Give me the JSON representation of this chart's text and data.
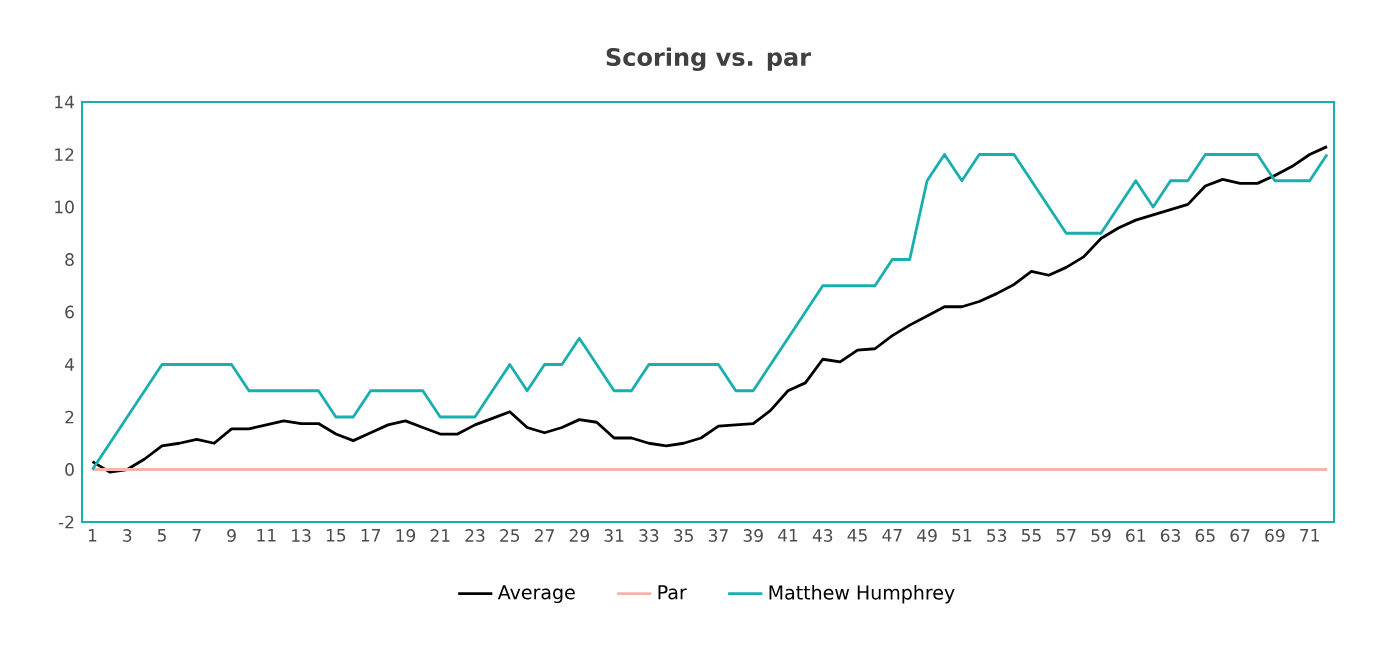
{
  "chart_data": {
    "type": "line",
    "title": "Scoring vs. par",
    "categories": [
      "1",
      null,
      "3",
      null,
      "5",
      null,
      "7",
      null,
      "9",
      null,
      "11",
      null,
      "13",
      null,
      "15",
      null,
      "17",
      null,
      "19",
      null,
      "21",
      null,
      "23",
      null,
      "25",
      null,
      "27",
      null,
      "29",
      null,
      "31",
      null,
      "33",
      null,
      "35",
      null,
      "37",
      null,
      "39",
      null,
      "41",
      null,
      "43",
      null,
      "45",
      null,
      "47",
      null,
      "49",
      null,
      "51",
      null,
      "53",
      null,
      "55",
      null,
      "57",
      null,
      "59",
      null,
      "61",
      null,
      "63",
      null,
      "65",
      null,
      "67",
      null,
      "69",
      null,
      "71",
      null
    ],
    "series": [
      {
        "name": "Average",
        "color": "#000000",
        "values": [
          0.3,
          -0.1,
          0,
          0.4,
          0.9,
          1.0,
          1.15,
          1.0,
          1.55,
          1.55,
          1.7,
          1.85,
          1.75,
          1.75,
          1.35,
          1.1,
          1.4,
          1.7,
          1.85,
          1.6,
          1.35,
          1.35,
          1.7,
          1.95,
          2.2,
          1.6,
          1.4,
          1.6,
          1.9,
          1.8,
          1.2,
          1.2,
          1.0,
          0.9,
          1.0,
          1.2,
          1.65,
          1.7,
          1.75,
          2.25,
          3.0,
          3.3,
          4.2,
          4.1,
          4.55,
          4.6,
          5.1,
          5.5,
          5.85,
          6.2,
          6.2,
          6.4,
          6.7,
          7.05,
          7.55,
          7.4,
          7.7,
          8.1,
          8.8,
          9.2,
          9.5,
          9.7,
          9.9,
          10.1,
          10.8,
          11.05,
          10.9,
          10.9,
          11.2,
          11.55,
          12.0,
          12.3
        ]
      },
      {
        "name": "Par",
        "color": "#f4b5a8",
        "values": [
          0,
          0,
          0,
          0,
          0,
          0,
          0,
          0,
          0,
          0,
          0,
          0,
          0,
          0,
          0,
          0,
          0,
          0,
          0,
          0,
          0,
          0,
          0,
          0,
          0,
          0,
          0,
          0,
          0,
          0,
          0,
          0,
          0,
          0,
          0,
          0,
          0,
          0,
          0,
          0,
          0,
          0,
          0,
          0,
          0,
          0,
          0,
          0,
          0,
          0,
          0,
          0,
          0,
          0,
          0,
          0,
          0,
          0,
          0,
          0,
          0,
          0,
          0,
          0,
          0,
          0,
          0,
          0,
          0,
          0,
          0,
          0
        ]
      },
      {
        "name": "Matthew Humphrey",
        "color": "#1aaeae",
        "values": [
          0,
          1,
          2,
          3,
          4,
          4,
          4,
          4,
          4,
          3,
          3,
          3,
          3,
          3,
          2,
          2,
          3,
          3,
          3,
          3,
          2,
          2,
          2,
          3,
          4,
          3,
          4,
          4,
          5,
          4,
          3,
          3,
          4,
          4,
          4,
          4,
          4,
          3,
          3,
          4,
          5,
          6,
          7,
          7,
          7,
          7,
          8,
          8,
          11,
          12,
          11,
          12,
          12,
          12,
          11,
          10,
          9,
          9,
          9,
          10,
          11,
          10,
          11,
          11,
          12,
          12,
          12,
          12,
          11,
          11,
          11,
          12
        ]
      }
    ],
    "ylim": [
      -2,
      14
    ],
    "yticks": [
      -2,
      0,
      2,
      4,
      6,
      8,
      10,
      12,
      14
    ],
    "grid": false,
    "legend": "bottom",
    "marker": "none",
    "line_style": "solid"
  }
}
